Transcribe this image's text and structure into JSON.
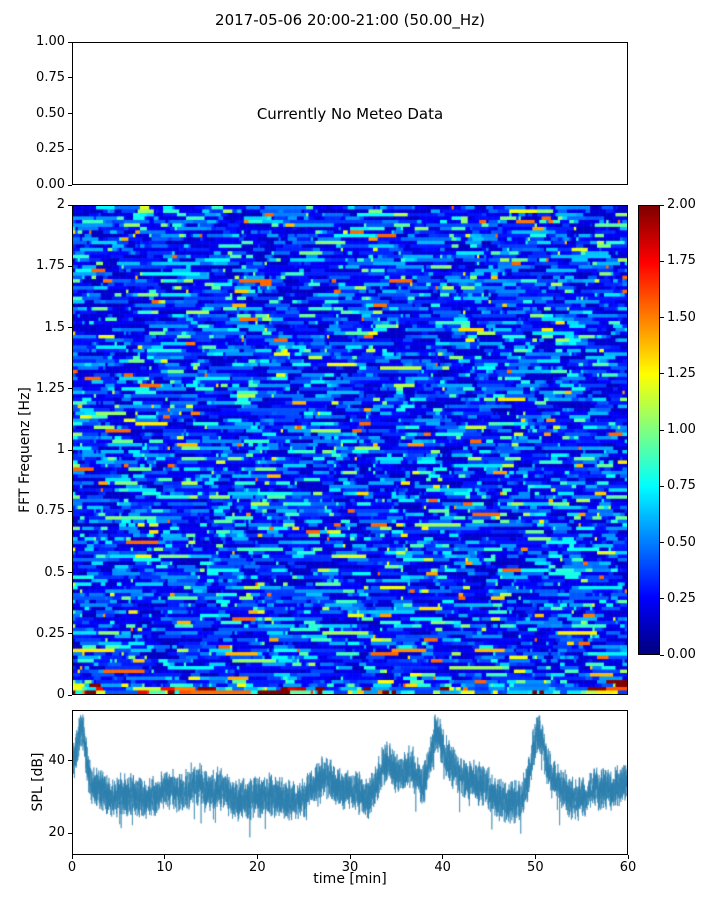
{
  "figure": {
    "title": "2017-05-06 20:00-21:00 (50.00_Hz)"
  },
  "meteo_panel": {
    "message": "Currently No Meteo Data",
    "ylim": [
      0,
      1
    ],
    "yticks": [
      1.0,
      0.75,
      0.5,
      0.25,
      0.0
    ],
    "ytick_labels": [
      "1.00",
      "0.75",
      "0.50",
      "0.25",
      "0.00"
    ]
  },
  "chart_data": [
    {
      "id": "fft-spectrogram",
      "type": "heatmap",
      "ylabel": "FFT Frequenz [Hz]",
      "xlim": [
        0,
        60
      ],
      "ylim": [
        0,
        2
      ],
      "yticks": [
        2,
        1.75,
        1.5,
        1.25,
        1,
        0.75,
        0.5,
        0.25,
        0
      ],
      "ytick_labels": [
        "2",
        "1.75",
        "1.5",
        "1.25",
        "1",
        "0.75",
        "0.5",
        "0.25",
        "0"
      ],
      "value_range": [
        0,
        2
      ],
      "colormap": "jet",
      "summary": "Dense noisy spectrogram of short horizontal streaks, mostly blue (values 0.1-0.9) with scattered cyan/green streaks up to ~1.4; strong energy band below ~0.07 Hz with values 1.0-2.0 rendered yellow/orange/red.",
      "colorbar": {
        "ticks": [
          2,
          1.75,
          1.5,
          1.25,
          1,
          0.75,
          0.5,
          0.25,
          0
        ],
        "tick_labels": [
          "2.00",
          "1.75",
          "1.50",
          "1.25",
          "1.00",
          "0.75",
          "0.50",
          "0.25",
          "0.00"
        ]
      },
      "generation": {
        "seed": 20170506,
        "cols": 240,
        "rows": 140,
        "persist_prob": 0.75,
        "base_offset": 0.12,
        "exp_scale": 0.3,
        "upper_clamp": 1.55,
        "max_value": 2,
        "low_freq_boosts": [
          3.0,
          2.2,
          1.6,
          1.3,
          1.15
        ]
      }
    },
    {
      "id": "spl-series",
      "type": "line",
      "ylabel": "SPL [dB]",
      "xlabel": "time [min]",
      "color": "#2d7fae",
      "xlim": [
        0,
        60
      ],
      "ylim": [
        14,
        54
      ],
      "yticks": [
        20,
        40
      ],
      "ytick_labels": [
        "20",
        "40"
      ],
      "xticks": [
        0,
        10,
        20,
        30,
        40,
        50,
        60
      ],
      "xtick_labels": [
        "0",
        "10",
        "20",
        "30",
        "40",
        "50",
        "60"
      ],
      "baseline_db": 28.5,
      "noise_halfwidth_db": 5.5,
      "samples": 6200,
      "seed": 777,
      "summary": "Noisy SPL trace with a 24-36 dB band around a 29 dB baseline; peaks ~50 dB at 1 min, ~37 dB at 27 min, ~44 dB at 34 min, ~43 dB at 36.5 min, ~51 dB at 39 min, ~51 dB at 50 min.",
      "peaks": [
        {
          "t": 0.0,
          "amp": 10,
          "width": 0.8
        },
        {
          "t": 1.0,
          "amp": 15,
          "width": 0.45
        },
        {
          "t": 2.5,
          "amp": 4,
          "width": 0.8
        },
        {
          "t": 6.0,
          "amp": 2,
          "width": 1.5
        },
        {
          "t": 10.3,
          "amp": 4,
          "width": 1.0
        },
        {
          "t": 13.3,
          "amp": 5,
          "width": 0.9
        },
        {
          "t": 16.0,
          "amp": 3.5,
          "width": 1.0
        },
        {
          "t": 21.0,
          "amp": 2,
          "width": 1.5
        },
        {
          "t": 27.3,
          "amp": 7,
          "width": 1.3
        },
        {
          "t": 30.5,
          "amp": 3,
          "width": 0.8
        },
        {
          "t": 34.0,
          "amp": 11,
          "width": 0.9
        },
        {
          "t": 36.5,
          "amp": 9.5,
          "width": 0.9
        },
        {
          "t": 39.3,
          "amp": 16,
          "width": 0.7
        },
        {
          "t": 41.0,
          "amp": 9,
          "width": 1.2
        },
        {
          "t": 44.0,
          "amp": 5,
          "width": 1.2
        },
        {
          "t": 50.3,
          "amp": 16,
          "width": 0.7
        },
        {
          "t": 51.8,
          "amp": 6,
          "width": 1.2
        },
        {
          "t": 57.0,
          "amp": 4,
          "width": 1.2
        },
        {
          "t": 60.0,
          "amp": 5,
          "width": 1.0
        }
      ]
    }
  ]
}
